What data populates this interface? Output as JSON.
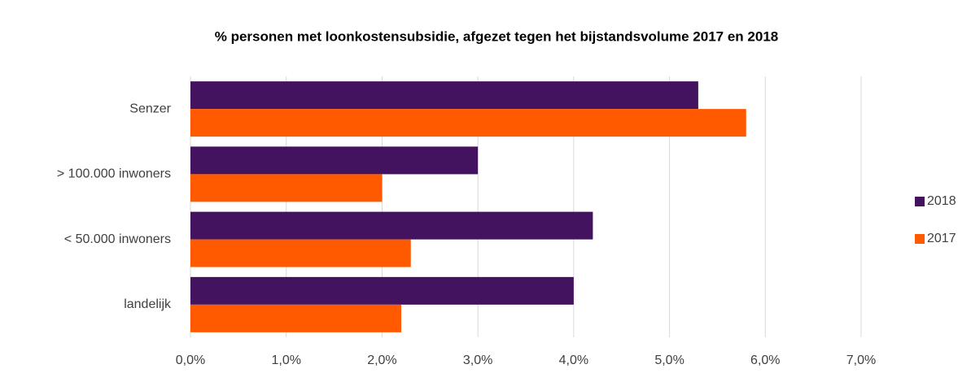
{
  "chart_data": {
    "type": "barh",
    "title": "% personen met loonkostensubsidie, afgezet tegen het bijstandsvolume 2017 en 2018",
    "categories": [
      "Senzer",
      "> 100.000 inwoners",
      "< 50.000 inwoners",
      "landelijk"
    ],
    "series": [
      {
        "name": "2018",
        "color": "#44135f",
        "values": [
          5.3,
          3.0,
          4.2,
          4.0
        ]
      },
      {
        "name": "2017",
        "color": "#ff5a00",
        "values": [
          5.8,
          2.0,
          2.3,
          2.2
        ]
      }
    ],
    "xlim": [
      0,
      7
    ],
    "xticks": [
      {
        "value": 0,
        "label": "0,0%"
      },
      {
        "value": 1,
        "label": "1,0%"
      },
      {
        "value": 2,
        "label": "2,0%"
      },
      {
        "value": 3,
        "label": "3,0%"
      },
      {
        "value": 4,
        "label": "4,0%"
      },
      {
        "value": 5,
        "label": "5,0%"
      },
      {
        "value": 6,
        "label": "6,0%"
      },
      {
        "value": 7,
        "label": "7,0%"
      }
    ],
    "grid": true,
    "legend": "right"
  }
}
